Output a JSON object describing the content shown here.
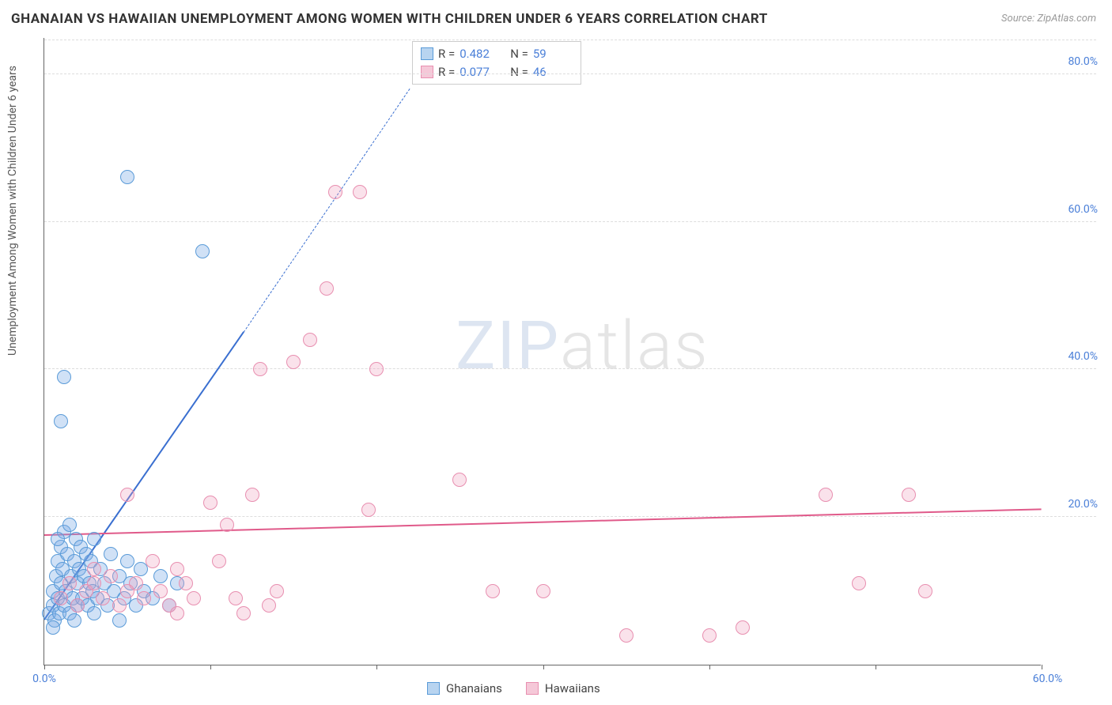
{
  "title": "GHANAIAN VS HAWAIIAN UNEMPLOYMENT AMONG WOMEN WITH CHILDREN UNDER 6 YEARS CORRELATION CHART",
  "source_prefix": "Source: ",
  "source_name": "ZipAtlas.com",
  "yaxis_label": "Unemployment Among Women with Children Under 6 years",
  "watermark_bold": "ZIP",
  "watermark_thin": "atlas",
  "chart": {
    "type": "scatter",
    "background_color": "#ffffff",
    "grid_color": "#dddddd",
    "axis_color": "#666666",
    "xlim": [
      0,
      60
    ],
    "ylim": [
      0,
      85
    ],
    "ytick_values": [
      20,
      40,
      60,
      80
    ],
    "ytick_labels": [
      "20.0%",
      "40.0%",
      "60.0%",
      "80.0%"
    ],
    "xtick_values": [
      0,
      10,
      20,
      30,
      40,
      50,
      60
    ],
    "xtick_label_left": "0.0%",
    "xtick_label_right": "60.0%",
    "marker_radius": 9,
    "marker_stroke_width": 1.5,
    "series": [
      {
        "name": "Ghanaians",
        "fill": "rgba(120,170,230,0.35)",
        "stroke": "#5a9bd8",
        "swatch_fill": "#b8d4f0",
        "swatch_border": "#5a9bd8",
        "R": "0.482",
        "N": "59",
        "trend": {
          "x1": 0,
          "y1": 6,
          "x2": 12,
          "y2": 45,
          "x2_dash": 22,
          "y2_dash": 78,
          "color": "#3a6fd0",
          "width": 2
        },
        "points": [
          [
            0.3,
            7
          ],
          [
            0.5,
            8
          ],
          [
            0.5,
            10
          ],
          [
            0.6,
            6
          ],
          [
            0.7,
            12
          ],
          [
            0.8,
            9
          ],
          [
            0.8,
            14
          ],
          [
            0.9,
            7
          ],
          [
            1.0,
            11
          ],
          [
            1.0,
            16
          ],
          [
            1.1,
            13
          ],
          [
            1.2,
            8
          ],
          [
            1.2,
            18
          ],
          [
            1.3,
            10
          ],
          [
            1.4,
            15
          ],
          [
            1.5,
            7
          ],
          [
            1.5,
            19
          ],
          [
            1.6,
            12
          ],
          [
            1.7,
            9
          ],
          [
            1.8,
            14
          ],
          [
            1.9,
            17
          ],
          [
            2.0,
            11
          ],
          [
            2.0,
            8
          ],
          [
            2.1,
            13
          ],
          [
            2.2,
            16
          ],
          [
            2.3,
            9
          ],
          [
            2.4,
            12
          ],
          [
            2.5,
            15
          ],
          [
            2.6,
            8
          ],
          [
            2.7,
            11
          ],
          [
            2.8,
            14
          ],
          [
            2.9,
            10
          ],
          [
            3.0,
            17
          ],
          [
            3.2,
            9
          ],
          [
            3.4,
            13
          ],
          [
            3.6,
            11
          ],
          [
            3.8,
            8
          ],
          [
            4.0,
            15
          ],
          [
            4.2,
            10
          ],
          [
            4.5,
            12
          ],
          [
            4.8,
            9
          ],
          [
            5.0,
            14
          ],
          [
            5.2,
            11
          ],
          [
            5.5,
            8
          ],
          [
            5.8,
            13
          ],
          [
            6.0,
            10
          ],
          [
            6.5,
            9
          ],
          [
            7.0,
            12
          ],
          [
            7.5,
            8
          ],
          [
            8.0,
            11
          ],
          [
            1.0,
            33
          ],
          [
            1.2,
            39
          ],
          [
            5.0,
            66
          ],
          [
            9.5,
            56
          ],
          [
            0.5,
            5
          ],
          [
            1.8,
            6
          ],
          [
            3.0,
            7
          ],
          [
            4.5,
            6
          ],
          [
            0.8,
            17
          ]
        ]
      },
      {
        "name": "Hawaiians",
        "fill": "rgba(240,160,190,0.30)",
        "stroke": "#e88fb0",
        "swatch_fill": "#f5c8d8",
        "swatch_border": "#e88fb0",
        "R": "0.077",
        "N": "46",
        "trend": {
          "x1": 0,
          "y1": 17.5,
          "x2": 60,
          "y2": 21,
          "color": "#e05a8a",
          "width": 2
        },
        "points": [
          [
            1.0,
            9
          ],
          [
            1.5,
            11
          ],
          [
            2.0,
            8
          ],
          [
            2.5,
            10
          ],
          [
            3.0,
            13
          ],
          [
            3.5,
            9
          ],
          [
            4.0,
            12
          ],
          [
            4.5,
            8
          ],
          [
            5.0,
            23
          ],
          [
            5.5,
            11
          ],
          [
            6.0,
            9
          ],
          [
            6.5,
            14
          ],
          [
            7.0,
            10
          ],
          [
            7.5,
            8
          ],
          [
            8.0,
            13
          ],
          [
            8.5,
            11
          ],
          [
            9.0,
            9
          ],
          [
            10.0,
            22
          ],
          [
            10.5,
            14
          ],
          [
            11.0,
            19
          ],
          [
            12.0,
            7
          ],
          [
            12.5,
            23
          ],
          [
            13.0,
            40
          ],
          [
            14.0,
            10
          ],
          [
            15.0,
            41
          ],
          [
            16.0,
            44
          ],
          [
            17.0,
            51
          ],
          [
            17.5,
            64
          ],
          [
            19.0,
            64
          ],
          [
            19.5,
            21
          ],
          [
            20.0,
            40
          ],
          [
            25.0,
            25
          ],
          [
            27.0,
            10
          ],
          [
            30.0,
            10
          ],
          [
            35.0,
            4
          ],
          [
            40.0,
            4
          ],
          [
            42.0,
            5
          ],
          [
            47.0,
            23
          ],
          [
            49.0,
            11
          ],
          [
            52.0,
            23
          ],
          [
            53.0,
            10
          ],
          [
            11.5,
            9
          ],
          [
            13.5,
            8
          ],
          [
            8.0,
            7
          ],
          [
            3.0,
            11
          ],
          [
            5.0,
            10
          ]
        ]
      }
    ]
  },
  "stats_labels": {
    "R": "R =",
    "N": "N ="
  },
  "legend": {
    "items": [
      {
        "label": "Ghanaians",
        "swatch_fill": "#b8d4f0",
        "swatch_border": "#5a9bd8"
      },
      {
        "label": "Hawaiians",
        "swatch_fill": "#f5c8d8",
        "swatch_border": "#e88fb0"
      }
    ]
  }
}
